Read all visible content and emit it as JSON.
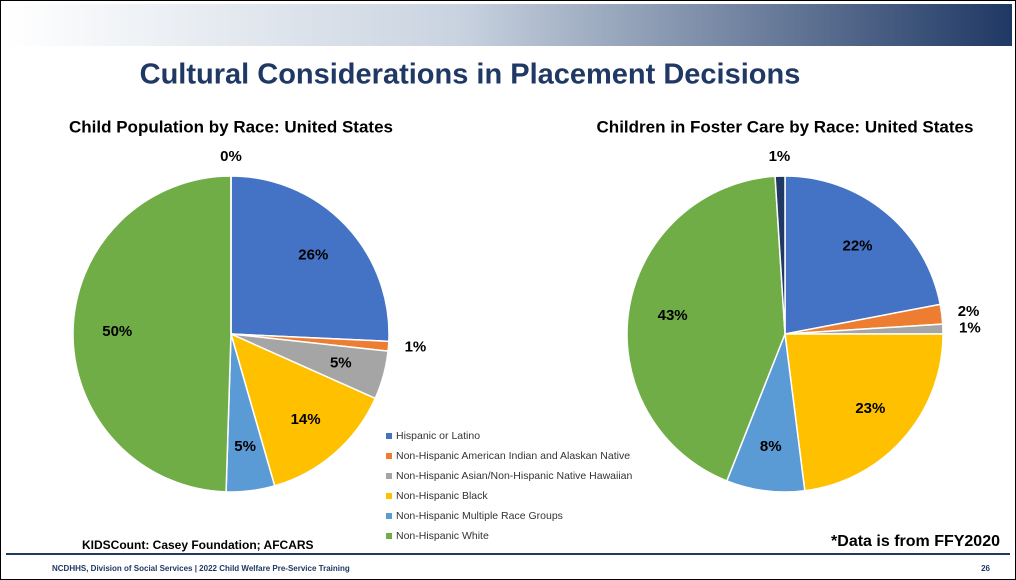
{
  "title": "Cultural Considerations in Placement Decisions",
  "source": "KIDSCount: Casey Foundation; AFCARS",
  "note": "*Data is from FFY2020",
  "footer": "NCDHHS, Division of Social Services | 2022 Child Welfare Pre-Service Training",
  "page_number": "26",
  "chart_data": [
    {
      "type": "pie",
      "title": "Child Population by Race: United States",
      "categories": [
        "Hispanic or Latino",
        "Non-Hispanic American Indian and Alaskan Native",
        "Non-Hispanic Asian/Non-Hispanic Native Hawaiian",
        "Non-Hispanic Black",
        "Non-Hispanic Multiple Race Groups",
        "Non-Hispanic White",
        null
      ],
      "values": [
        26,
        1,
        5,
        14,
        5,
        50,
        0
      ],
      "value_labels": [
        "26%",
        "1%",
        "5%",
        "14%",
        "5%",
        "50%",
        "0%"
      ],
      "colors": [
        "#4472c4",
        "#ed7d31",
        "#a5a5a5",
        "#ffc000",
        "#5b9bd5",
        "#70ad47",
        "#203864"
      ]
    },
    {
      "type": "pie",
      "title": "Children in Foster Care by Race: United States",
      "categories": [
        "Hispanic or Latino",
        "Non-Hispanic American Indian and Alaskan Native",
        "Non-Hispanic Asian/Non-Hispanic Native Hawaiian",
        "Non-Hispanic Black",
        "Non-Hispanic Multiple Race Groups",
        "Non-Hispanic White",
        null
      ],
      "values": [
        22,
        2,
        1,
        23,
        8,
        43,
        1
      ],
      "value_labels": [
        "22%",
        "2%",
        "1%",
        "23%",
        "8%",
        "43%",
        "1%"
      ],
      "colors": [
        "#4472c4",
        "#ed7d31",
        "#a5a5a5",
        "#ffc000",
        "#5b9bd5",
        "#70ad47",
        "#203864"
      ]
    }
  ]
}
